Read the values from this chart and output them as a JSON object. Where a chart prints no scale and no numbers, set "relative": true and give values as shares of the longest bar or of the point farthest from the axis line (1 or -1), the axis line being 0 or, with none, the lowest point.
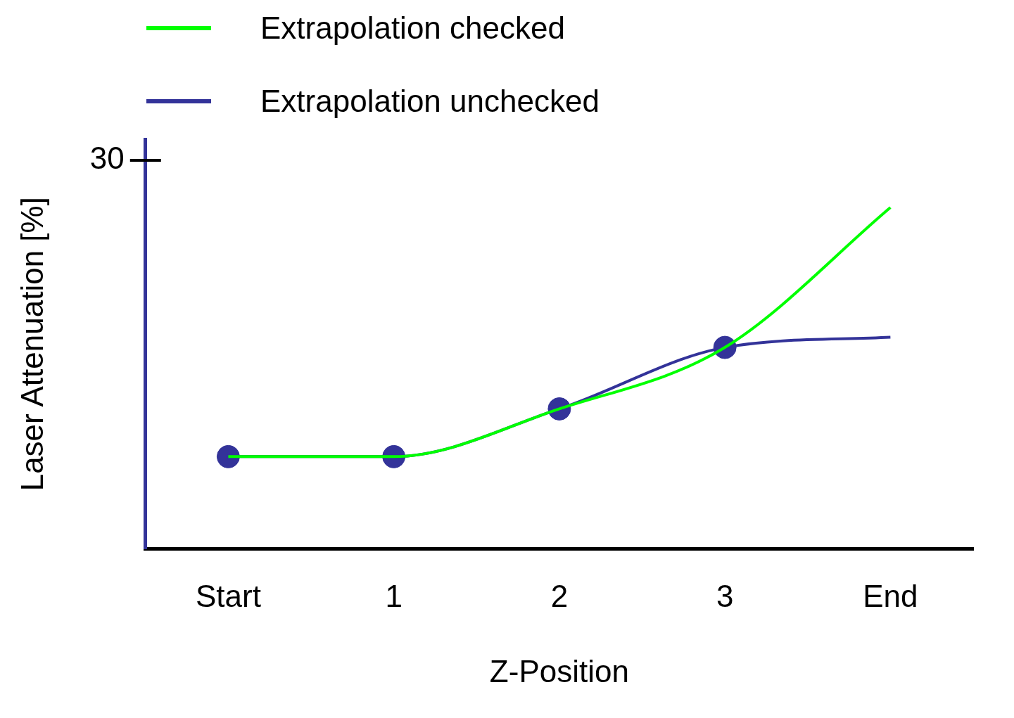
{
  "chart_data": {
    "type": "line",
    "xlabel": "Z-Position",
    "ylabel": "Laser Attenuation [%]",
    "categories": [
      "Start",
      "1",
      "2",
      "3",
      "End"
    ],
    "relative": true,
    "annotations": [
      "30"
    ],
    "legend": "top left",
    "series": [
      {
        "name": "Extrapolation checked",
        "color": "#00ff00",
        "values": [
          0.27,
          0.27,
          0.41,
          0.59,
          1
        ]
      },
      {
        "name": "Extrapolation unchecked",
        "color": "#333399",
        "values": [
          0.27,
          0.27,
          0.41,
          0.59,
          0.62
        ]
      },
      {
        "type": "scatter",
        "color": "#333399",
        "marker": "circle",
        "values": [
          0.27,
          0.27,
          0.41,
          0.59,
          null
        ]
      }
    ]
  }
}
